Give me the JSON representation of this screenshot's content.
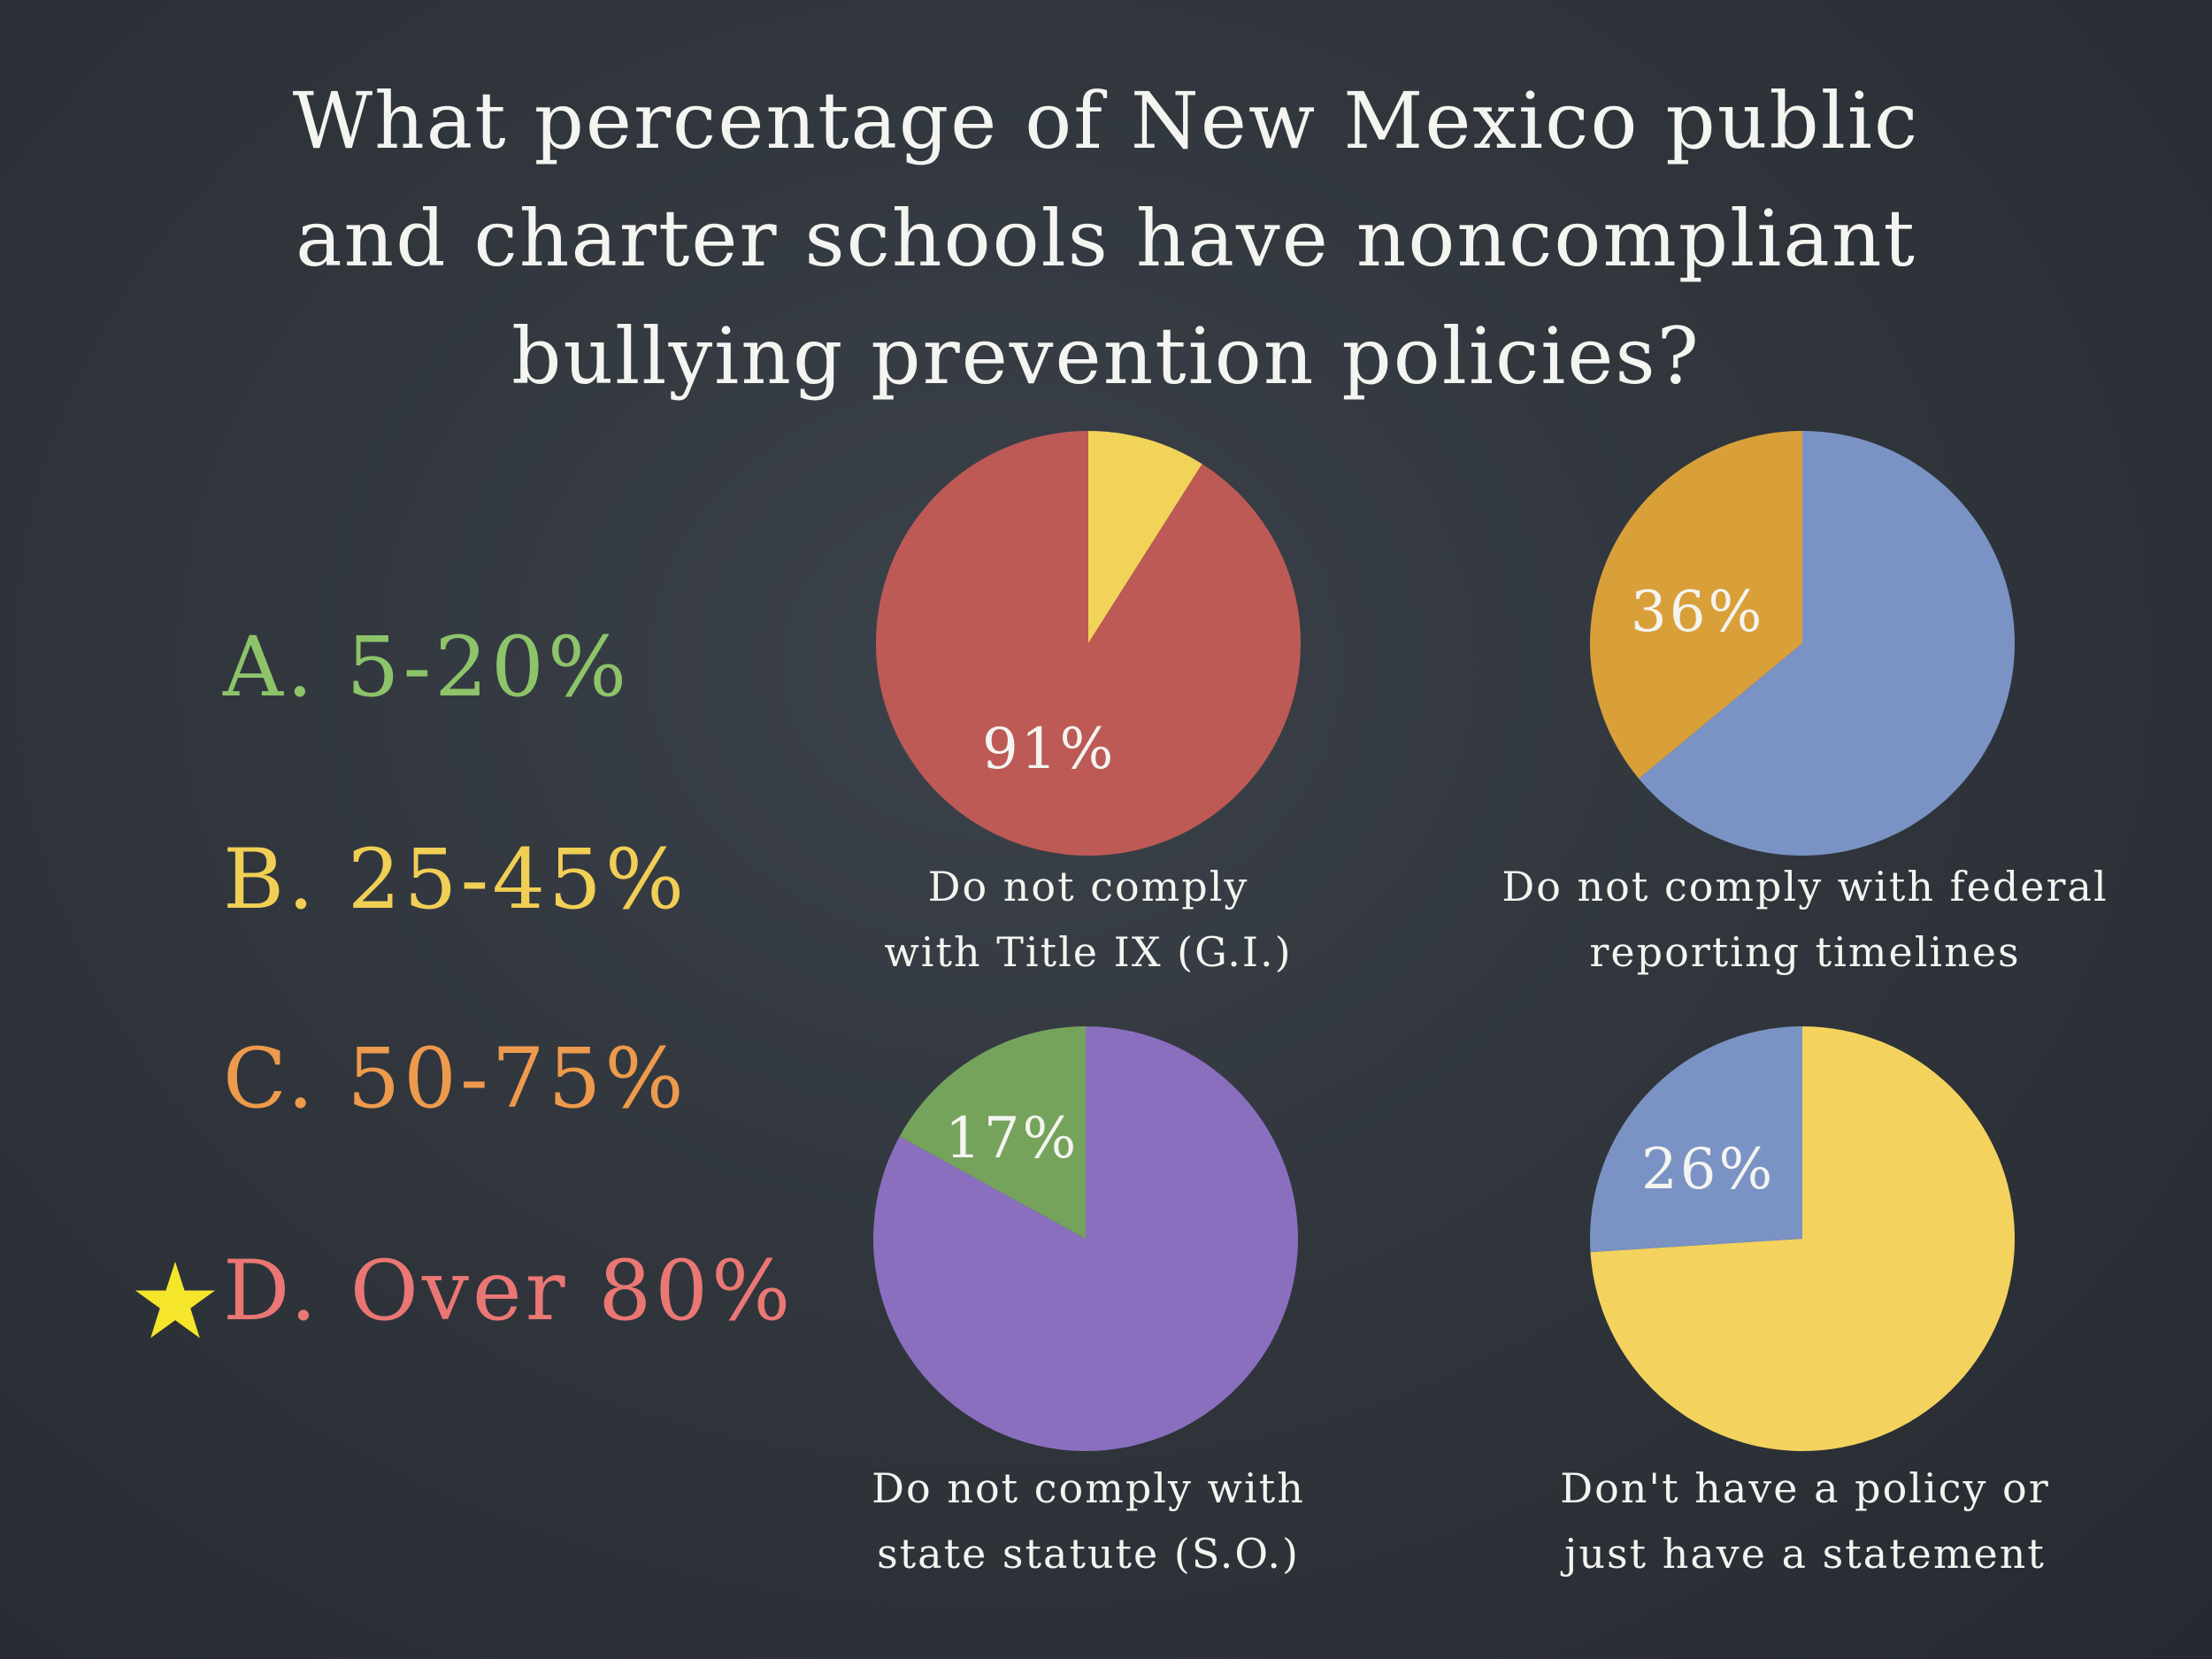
{
  "title": {
    "line1": "What percentage of New Mexico public",
    "line2": "and charter schools have noncompliant",
    "line3": "bullying prevention policies?"
  },
  "options": {
    "a": "A. 5-20%",
    "b": "B. 25-45%",
    "c": "C. 50-75%",
    "d": "D. Over 80%"
  },
  "correct_marker": {
    "icon": "star-icon",
    "color": "#f5e52b"
  },
  "chart_data": [
    {
      "type": "pie",
      "slices": [
        {
          "value": 91,
          "label": "91%",
          "color": "#bd5a55"
        },
        {
          "value": 9,
          "label": "",
          "color": "#f2d35a"
        }
      ],
      "caption": [
        "Do not comply",
        "with Title IX (G.I.)"
      ]
    },
    {
      "type": "pie",
      "slices": [
        {
          "value": 64,
          "label": "",
          "color": "#7a93c4"
        },
        {
          "value": 36,
          "label": "36%",
          "color": "#d9a03a"
        }
      ],
      "caption": [
        "Do not comply with federal",
        "reporting timelines"
      ]
    },
    {
      "type": "pie",
      "slices": [
        {
          "value": 83,
          "label": "",
          "color": "#8a6fbf"
        },
        {
          "value": 17,
          "label": "17%",
          "color": "#75a35c"
        }
      ],
      "caption": [
        "Do not comply with",
        "state statute (S.O.)"
      ]
    },
    {
      "type": "pie",
      "slices": [
        {
          "value": 74,
          "label": "",
          "color": "#f3d35e"
        },
        {
          "value": 26,
          "label": "26%",
          "color": "#7a93c4"
        }
      ],
      "caption": [
        "Don't have a policy or",
        "just have a statement"
      ]
    }
  ]
}
